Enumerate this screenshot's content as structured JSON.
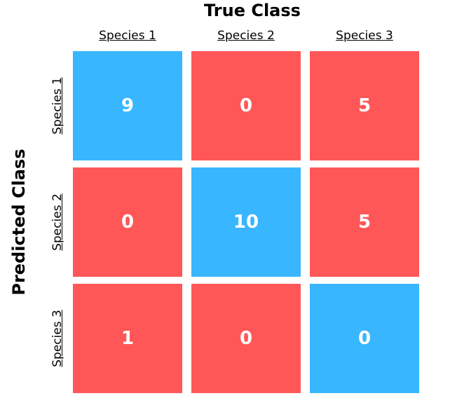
{
  "chart_data": {
    "type": "heatmap",
    "title": "True Class",
    "xlabel": "True Class",
    "ylabel": "Predicted Class",
    "columns": [
      "Species 1",
      "Species 2",
      "Species 3"
    ],
    "rows": [
      "Species 1",
      "Species 2",
      "Species 3"
    ],
    "values": [
      [
        9,
        0,
        5
      ],
      [
        0,
        10,
        5
      ],
      [
        1,
        0,
        0
      ]
    ],
    "colors": {
      "diagonal": "#38b6ff",
      "off_diagonal": "#ff5757"
    },
    "grid": false,
    "legend": "none"
  }
}
